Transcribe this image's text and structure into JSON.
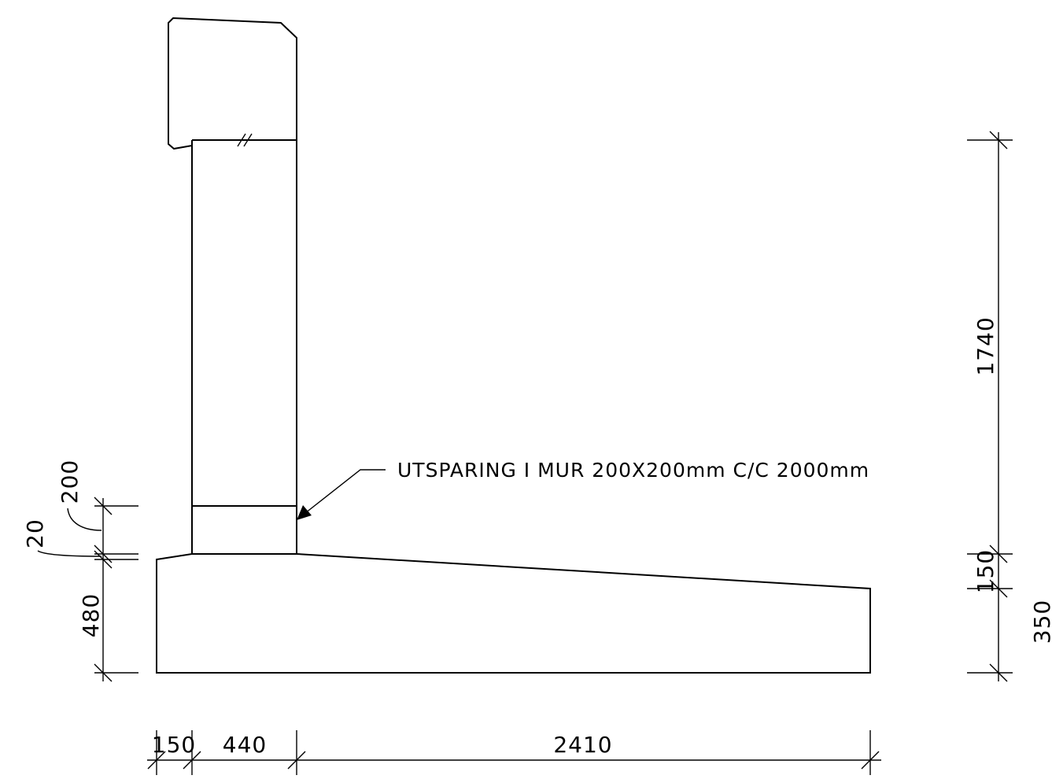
{
  "annotation": {
    "text": "UTSPARING I MUR 200X200mm C/C 2000mm"
  },
  "dimensions": {
    "bottom": {
      "toe": "150",
      "wall": "440",
      "heel": "2410"
    },
    "left": {
      "opening": "200",
      "gap": "20",
      "footing": "480"
    },
    "right": {
      "wall_height": "1740",
      "slope_drop": "150",
      "heel_end": "350"
    }
  }
}
